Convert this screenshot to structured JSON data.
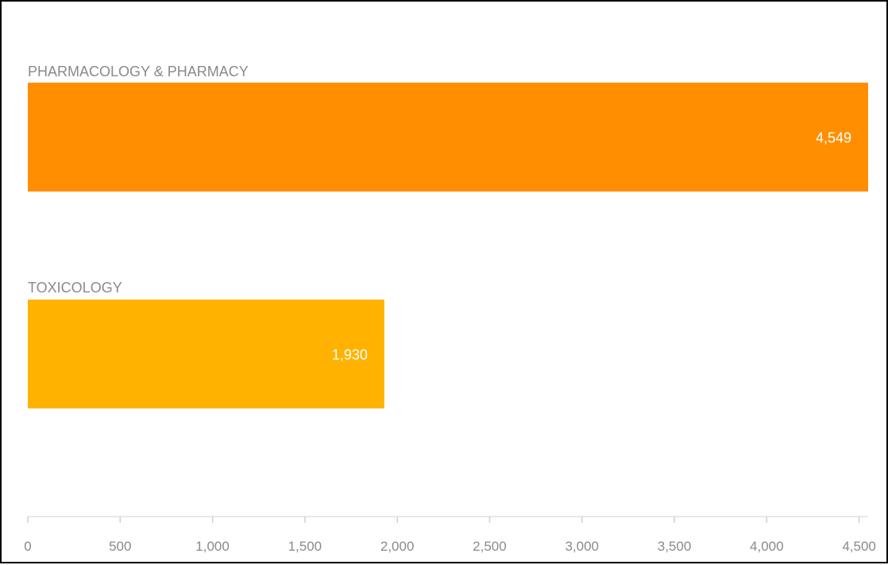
{
  "chart_data": {
    "type": "bar",
    "orientation": "horizontal",
    "categories": [
      "PHARMACOLOGY & PHARMACY",
      "TOXICOLOGY"
    ],
    "values": [
      4549,
      1930
    ],
    "value_labels": [
      "4,549",
      "1,930"
    ],
    "colors": [
      "#ff8f00",
      "#ffb300"
    ],
    "xlim": [
      0,
      4549
    ],
    "ticks": [
      0,
      500,
      1000,
      1500,
      2000,
      2500,
      3000,
      3500,
      4000,
      4500
    ],
    "tick_labels": [
      "0",
      "500",
      "1,000",
      "1,500",
      "2,000",
      "2,500",
      "3,000",
      "3,500",
      "4,000",
      "4,500"
    ],
    "grid": false
  }
}
